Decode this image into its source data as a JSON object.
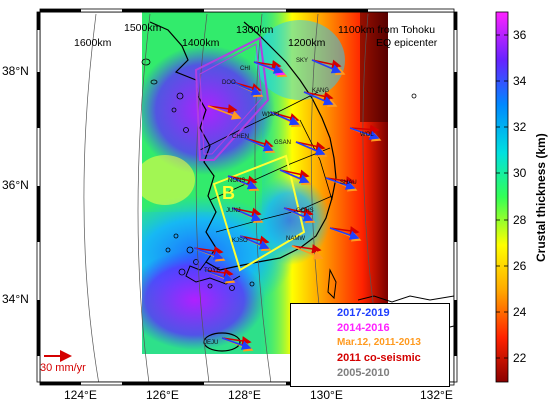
{
  "distance_labels": [
    {
      "text": "1600km"
    },
    {
      "text": "1500km"
    },
    {
      "text": "1400km"
    },
    {
      "text": "1300km"
    },
    {
      "text": "1200km"
    },
    {
      "text": "1100km from Tohoku"
    },
    {
      "text": "EQ epicenter"
    }
  ],
  "lat_labels": [
    "38°N",
    "36°N",
    "34°N"
  ],
  "lon_labels": [
    "124°E",
    "126°E",
    "128°E",
    "130°E",
    "132°E"
  ],
  "colorbar": {
    "title": "Crustal thickness (km)",
    "ticks": [
      "36",
      "34",
      "32",
      "30",
      "28",
      "26",
      "24",
      "22"
    ],
    "range": [
      21,
      37
    ]
  },
  "region_label": "B",
  "site_labels": [
    "CHI",
    "SKY",
    "DOO",
    "KANG",
    "WNJU",
    "CHEN",
    "WOL",
    "GSAN",
    "NONS",
    "SHAU",
    "JUNJ",
    "GOHS",
    "KJSO",
    "NAMW",
    "TOYE",
    "JEJU"
  ],
  "legend": [
    {
      "label": "2017-2019",
      "color": "#1f3fff"
    },
    {
      "label": "2014-2016",
      "color": "#ff22ff"
    },
    {
      "label": "Mar.12, 2011-2013",
      "color": "#ff9a1f"
    },
    {
      "label": "2011 co-seismic",
      "color": "#d40000"
    },
    {
      "label": "2005-2010",
      "color": "#7f7f7f"
    }
  ],
  "scale": {
    "label": "30 mm/yr",
    "color": "#d40000"
  }
}
